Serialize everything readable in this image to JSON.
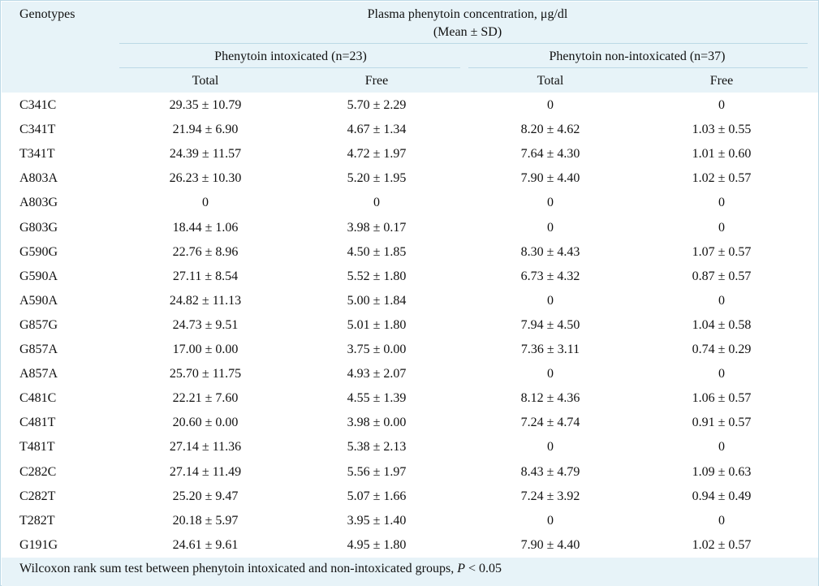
{
  "table": {
    "corner_header": "Genotypes",
    "title_line1": "Plasma phenytoin concentration, μg/dl",
    "title_line2": "(Mean  ±  SD)",
    "groups": [
      {
        "label": "Phenytoin intoxicated (n=23)",
        "cols": [
          "Total",
          "Free"
        ]
      },
      {
        "label": "Phenytoin non-intoxicated (n=37)",
        "cols": [
          "Total",
          "Free"
        ]
      }
    ],
    "rows": [
      {
        "genotype": "C341C",
        "cells": [
          "29.35 ± 10.79",
          "5.70 ± 2.29",
          "0",
          "0"
        ]
      },
      {
        "genotype": "C341T",
        "cells": [
          "21.94 ± 6.90",
          "4.67 ± 1.34",
          "8.20 ± 4.62",
          "1.03 ± 0.55"
        ]
      },
      {
        "genotype": "T341T",
        "cells": [
          "24.39 ± 11.57",
          "4.72 ± 1.97",
          "7.64 ± 4.30",
          "1.01 ± 0.60"
        ]
      },
      {
        "genotype": "A803A",
        "cells": [
          "26.23 ± 10.30",
          "5.20 ± 1.95",
          "7.90 ± 4.40",
          "1.02 ± 0.57"
        ]
      },
      {
        "genotype": "A803G",
        "cells": [
          "0",
          "0",
          "0",
          "0"
        ]
      },
      {
        "genotype": "G803G",
        "cells": [
          "18.44 ± 1.06",
          "3.98 ± 0.17",
          "0",
          "0"
        ]
      },
      {
        "genotype": "G590G",
        "cells": [
          "22.76 ± 8.96",
          "4.50 ± 1.85",
          "8.30 ± 4.43",
          "1.07 ± 0.57"
        ]
      },
      {
        "genotype": "G590A",
        "cells": [
          "27.11 ± 8.54",
          "5.52 ± 1.80",
          "6.73 ± 4.32",
          "0.87 ± 0.57"
        ]
      },
      {
        "genotype": "A590A",
        "cells": [
          "24.82 ± 11.13",
          "5.00 ± 1.84",
          "0",
          "0"
        ]
      },
      {
        "genotype": "G857G",
        "cells": [
          "24.73 ± 9.51",
          "5.01 ± 1.80",
          "7.94 ± 4.50",
          "1.04 ± 0.58"
        ]
      },
      {
        "genotype": "G857A",
        "cells": [
          "17.00 ± 0.00",
          "3.75 ± 0.00",
          "7.36 ± 3.11",
          "0.74 ± 0.29"
        ]
      },
      {
        "genotype": "A857A",
        "cells": [
          "25.70 ± 11.75",
          "4.93 ± 2.07",
          "0",
          "0"
        ]
      },
      {
        "genotype": "C481C",
        "cells": [
          "22.21 ± 7.60",
          "4.55 ± 1.39",
          "8.12 ± 4.36",
          "1.06 ± 0.57"
        ]
      },
      {
        "genotype": "C481T",
        "cells": [
          "20.60 ± 0.00",
          "3.98 ± 0.00",
          "7.24 ± 4.74",
          "0.91 ± 0.57"
        ]
      },
      {
        "genotype": "T481T",
        "cells": [
          "27.14 ± 11.36",
          "5.38 ± 2.13",
          "0",
          "0"
        ]
      },
      {
        "genotype": "C282C",
        "cells": [
          "27.14 ± 11.49",
          "5.56 ± 1.97",
          "8.43 ± 4.79",
          "1.09 ± 0.63"
        ]
      },
      {
        "genotype": "C282T",
        "cells": [
          "25.20 ± 9.47",
          "5.07 ± 1.66",
          "7.24 ± 3.92",
          "0.94 ± 0.49"
        ]
      },
      {
        "genotype": "T282T",
        "cells": [
          "20.18 ± 5.97",
          "3.95 ± 1.40",
          "0",
          "0"
        ]
      },
      {
        "genotype": "G191G",
        "cells": [
          "24.61 ± 9.61",
          "4.95 ± 1.80",
          "7.90 ± 4.40",
          "1.02 ± 0.57"
        ]
      }
    ],
    "footnote_prefix": "Wilcoxon rank sum test between phenytoin intoxicated and non-intoxicated groups, ",
    "footnote_p": "P",
    "footnote_suffix": " < 0.05"
  }
}
